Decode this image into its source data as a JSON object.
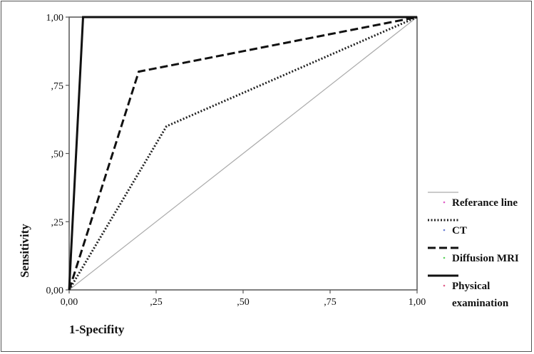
{
  "chart_data": {
    "type": "line",
    "title": "",
    "xlabel": "1-Specifity",
    "ylabel": "Sensitivity",
    "xlim": [
      0,
      1
    ],
    "ylim": [
      0,
      1
    ],
    "x_ticks": [
      "0,00",
      ",25",
      ",50",
      ",75",
      "1,00"
    ],
    "y_ticks": [
      "0,00",
      ",25",
      ",50",
      ",75",
      "1,00"
    ],
    "grid": false,
    "legend_position": "right",
    "series": [
      {
        "name": "Referance line",
        "color": "#aaaaaa",
        "style": "solid-thin",
        "marker_color": "#e05fc8",
        "points": [
          [
            0,
            0
          ],
          [
            1,
            1
          ]
        ]
      },
      {
        "name": "CT",
        "color": "#222222",
        "style": "dotted",
        "marker_color": "#6a7fd4",
        "points": [
          [
            0,
            0
          ],
          [
            0.28,
            0.6
          ],
          [
            1,
            1
          ]
        ]
      },
      {
        "name": "Diffusion MRI",
        "color": "#111111",
        "style": "dashed",
        "marker_color": "#5fd45f",
        "points": [
          [
            0,
            0
          ],
          [
            0.2,
            0.8
          ],
          [
            1,
            1
          ]
        ]
      },
      {
        "name": "Physical examination",
        "legend_lines": [
          "Physical",
          "examination"
        ],
        "color": "#111111",
        "style": "solid-thick",
        "marker_color": "#e05f8a",
        "points": [
          [
            0,
            0
          ],
          [
            0.04,
            1
          ],
          [
            1,
            1
          ]
        ]
      }
    ]
  }
}
